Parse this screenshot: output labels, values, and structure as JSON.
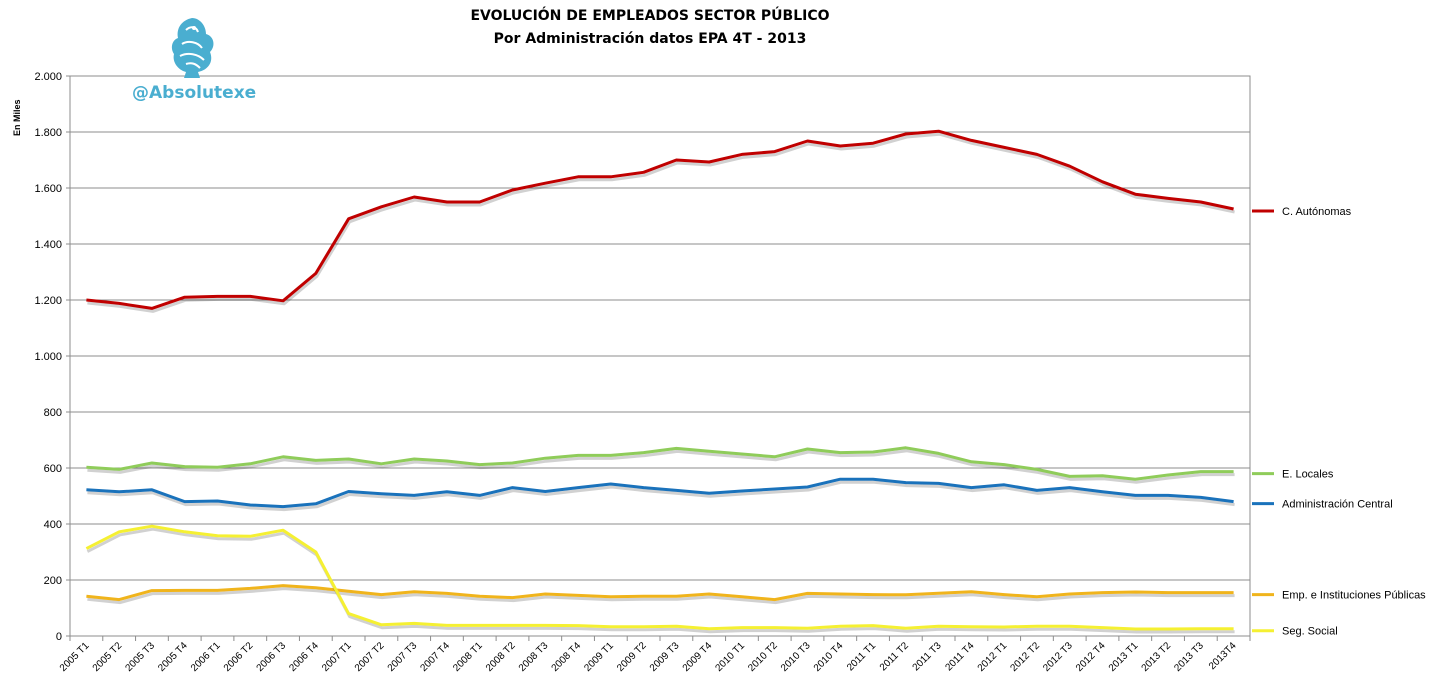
{
  "brand": "@Absolutexe",
  "logo_icon": "griffin-logo-icon",
  "chart_data": {
    "type": "line",
    "title": "EVOLUCIÓN DE EMPLEADOS SECTOR PÚBLICO",
    "subtitle": "Por Administración datos EPA 4T - 2013",
    "ylabel": "En Miles",
    "xlabel": "",
    "ylim": [
      0,
      2000
    ],
    "ytick_step": 200,
    "grid": "horizontal",
    "legend": "right",
    "categories": [
      "2005 T1",
      "2005 T2",
      "2005 T3",
      "2005 T4",
      "2006 T1",
      "2006 T2",
      "2006 T3",
      "2006 T4",
      "2007 T1",
      "2007 T2",
      "2007 T3",
      "2007 T4",
      "2008 T1",
      "2008 T2",
      "2008 T3",
      "2008 T4",
      "2009 T1",
      "2009 T2",
      "2009 T3",
      "2009 T4",
      "2010 T1",
      "2010 T2",
      "2010 T3",
      "2010 T4",
      "2011 T1",
      "2011 T2",
      "2011 T3",
      "2011 T4",
      "2012 T1",
      "2012 T2",
      "2012 T3",
      "2012 T4",
      "2013 T1",
      "2013 T2",
      "2013 T3",
      "2013T4"
    ],
    "series": [
      {
        "name": "C. Autónomas",
        "color": "#c00000",
        "values": [
          1200,
          1188,
          1170,
          1210,
          1213,
          1213,
          1197,
          1295,
          1490,
          1533,
          1568,
          1550,
          1550,
          1593,
          1617,
          1640,
          1640,
          1656,
          1700,
          1693,
          1720,
          1730,
          1768,
          1750,
          1760,
          1793,
          1803,
          1770,
          1745,
          1720,
          1678,
          1622,
          1578,
          1563,
          1550,
          1525
        ]
      },
      {
        "name": "E. Locales",
        "color": "#8fcc5a",
        "values": [
          603,
          595,
          618,
          605,
          603,
          615,
          640,
          627,
          632,
          615,
          632,
          625,
          612,
          618,
          635,
          645,
          645,
          655,
          670,
          660,
          650,
          640,
          668,
          655,
          657,
          672,
          652,
          622,
          612,
          595,
          570,
          572,
          560,
          575,
          587,
          587
        ]
      },
      {
        "name": "Administración Central",
        "color": "#1a72bb",
        "values": [
          522,
          515,
          522,
          480,
          482,
          468,
          462,
          472,
          516,
          508,
          502,
          515,
          502,
          530,
          516,
          530,
          543,
          530,
          520,
          510,
          518,
          525,
          532,
          560,
          560,
          548,
          545,
          530,
          540,
          520,
          530,
          515,
          502,
          502,
          495,
          480
        ]
      },
      {
        "name": "Emp. e Instituciones Públicas",
        "color": "#f0b41c",
        "values": [
          142,
          130,
          162,
          163,
          163,
          170,
          180,
          172,
          160,
          148,
          158,
          152,
          142,
          137,
          150,
          145,
          140,
          142,
          142,
          150,
          140,
          130,
          152,
          150,
          148,
          147,
          153,
          158,
          148,
          140,
          150,
          155,
          157,
          155,
          155,
          155
        ]
      },
      {
        "name": "Seg. Social",
        "color": "#f5f032",
        "values": [
          312,
          372,
          392,
          372,
          358,
          356,
          378,
          300,
          80,
          40,
          45,
          38,
          38,
          38,
          38,
          37,
          33,
          33,
          35,
          26,
          30,
          30,
          28,
          35,
          37,
          28,
          35,
          33,
          32,
          35,
          35,
          30,
          25,
          25,
          26,
          26
        ]
      }
    ]
  }
}
